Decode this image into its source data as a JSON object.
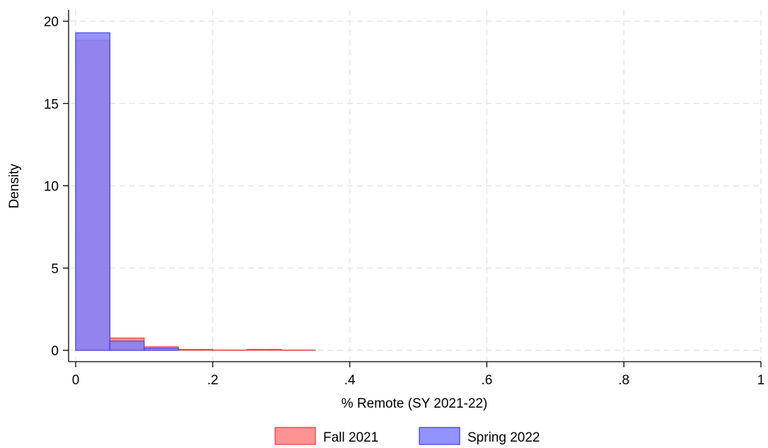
{
  "chart_data": {
    "type": "bar",
    "subtype": "histogram",
    "xlabel": "% Remote (SY 2021-22)",
    "ylabel": "Density",
    "xlim": [
      0,
      1
    ],
    "ylim": [
      0,
      20
    ],
    "xticks": [
      0,
      0.2,
      0.4,
      0.6,
      0.8,
      1
    ],
    "xtick_labels": [
      "0",
      ".2",
      ".4",
      ".6",
      ".8",
      "1"
    ],
    "yticks": [
      0,
      5,
      10,
      15,
      20
    ],
    "ytick_labels": [
      "0",
      "5",
      "10",
      "15",
      "20"
    ],
    "grid": true,
    "legend_position": "bottom",
    "bin_width": 0.05,
    "series": [
      {
        "name": "Fall 2021",
        "color": "#ff8080",
        "border_color": "#e83c3c",
        "bins": [
          {
            "start": 0.0,
            "value": 18.85
          },
          {
            "start": 0.05,
            "value": 0.75
          },
          {
            "start": 0.1,
            "value": 0.22
          },
          {
            "start": 0.15,
            "value": 0.06
          },
          {
            "start": 0.2,
            "value": 0.02
          },
          {
            "start": 0.25,
            "value": 0.06
          },
          {
            "start": 0.3,
            "value": 0.02
          }
        ]
      },
      {
        "name": "Spring 2022",
        "color": "#8080ff",
        "border_color": "#3c3ce8",
        "bins": [
          {
            "start": 0.0,
            "value": 19.3
          },
          {
            "start": 0.05,
            "value": 0.56
          },
          {
            "start": 0.1,
            "value": 0.13
          }
        ]
      }
    ]
  }
}
